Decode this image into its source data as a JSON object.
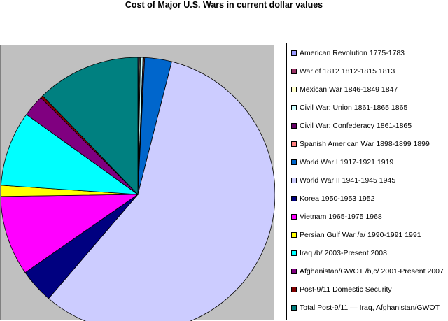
{
  "chart_data": {
    "type": "pie",
    "title": "Cost of Major U.S. Wars in current dollar values",
    "legend_position": "right",
    "slices": [
      {
        "label": "American Revolution 1775-1783",
        "value": 0.1,
        "color": "#9999ff"
      },
      {
        "label": "War of 1812 1812-1815 1813",
        "value": 0.1,
        "color": "#993366"
      },
      {
        "label": "Mexican War 1846-1849 1847",
        "value": 0.1,
        "color": "#ffffcc"
      },
      {
        "label": "Civil War: Union 1861-1865 1865",
        "value": 0.3,
        "color": "#ccffff"
      },
      {
        "label": "Civil War: Confederacy 1861-1865",
        "value": 0.1,
        "color": "#660066"
      },
      {
        "label": "Spanish American War 1898-1899 1899",
        "value": 0.1,
        "color": "#ff8080"
      },
      {
        "label": "World War I 1917-1921 1919",
        "value": 3.2,
        "color": "#0066cc"
      },
      {
        "label": "World War II 1941-1945 1945",
        "value": 57.7,
        "color": "#ccccff"
      },
      {
        "label": "Korea 1950-1953 1952",
        "value": 4.1,
        "color": "#000080"
      },
      {
        "label": "Vietnam 1965-1975 1968",
        "value": 9.5,
        "color": "#ff00ff"
      },
      {
        "label": "Persian Gulf War /a/ 1990-1991 1991",
        "value": 1.3,
        "color": "#ffff00"
      },
      {
        "label": "Iraq /b/ 2003-Present 2008",
        "value": 8.9,
        "color": "#00ffff"
      },
      {
        "label": "Afghanistan/GWOT /b,c/ 2001-Present 2007",
        "value": 2.6,
        "color": "#800080"
      },
      {
        "label": "Post-9/11 Domestic Security",
        "value": 0.3,
        "color": "#800000"
      },
      {
        "label": "Total Post-9/11 — Iraq, Afghanistan/GWOT",
        "value": 12.3,
        "color": "#008080"
      }
    ]
  }
}
